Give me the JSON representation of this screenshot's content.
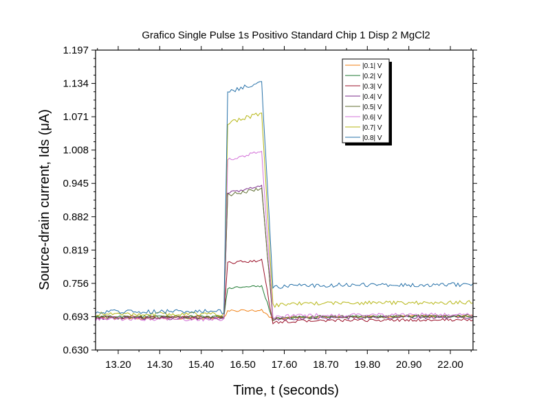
{
  "chart_data": {
    "type": "line",
    "title": "Grafico Single Pulse 1s Positivo Standard Chip 1 Disp 2 MgCl2",
    "xlabel": "Time, t (seconds)",
    "ylabel": "Source-drain current, Ids (μA)",
    "xlim": [
      12.6,
      22.6
    ],
    "ylim": [
      0.63,
      1.197
    ],
    "xticks": [
      "13.20",
      "14.30",
      "15.40",
      "16.50",
      "17.60",
      "18.70",
      "19.80",
      "20.90",
      "22.00"
    ],
    "yticks": [
      "0.630",
      "0.693",
      "0.756",
      "0.819",
      "0.882",
      "0.945",
      "1.008",
      "1.071",
      "1.134",
      "1.197"
    ],
    "legend_position": "top-right",
    "pulse": {
      "rise": 16.0,
      "fall": 17.0
    },
    "series": [
      {
        "name": "|0.1| V",
        "color": "#f07f12",
        "base": 0.69,
        "plateau": 0.705,
        "post": 0.692
      },
      {
        "name": "|0.2| V",
        "color": "#1f7a33",
        "base": 0.693,
        "plateau": 0.75,
        "post": 0.692
      },
      {
        "name": "|0.3| V",
        "color": "#9b1028",
        "base": 0.692,
        "plateau": 0.8,
        "post": 0.685
      },
      {
        "name": "|0.4| V",
        "color": "#7a2a8a",
        "base": 0.69,
        "plateau": 0.94,
        "post": 0.69
      },
      {
        "name": "|0.5| V",
        "color": "#5c6b2e",
        "base": 0.692,
        "plateau": 0.935,
        "post": 0.692
      },
      {
        "name": "|0.6| V",
        "color": "#d370d8",
        "base": 0.688,
        "plateau": 1.005,
        "post": 0.695
      },
      {
        "name": "|0.7| V",
        "color": "#b5b512",
        "base": 0.698,
        "plateau": 1.078,
        "post": 0.718
      },
      {
        "name": "|0.8| V",
        "color": "#2570a8",
        "base": 0.703,
        "plateau": 1.138,
        "post": 0.752
      }
    ]
  }
}
